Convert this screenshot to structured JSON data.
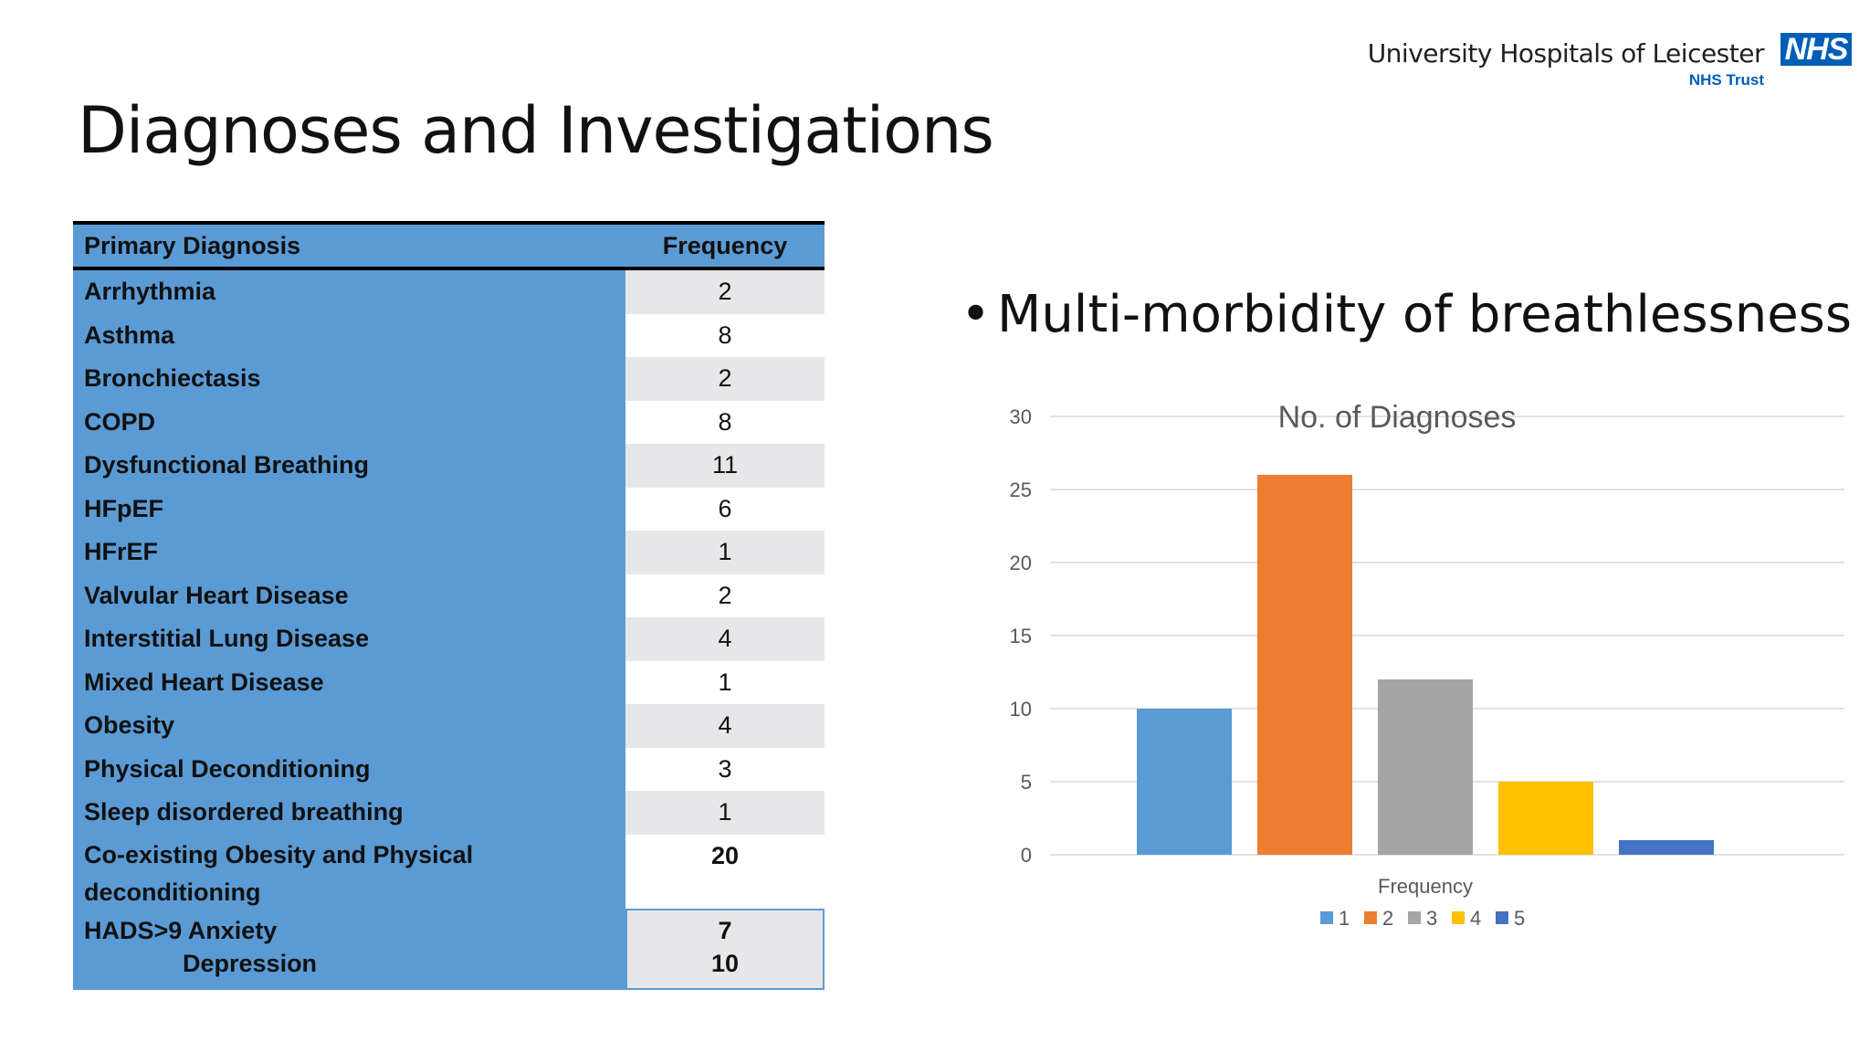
{
  "slide": {
    "title": "Diagnoses and Investigations",
    "bullet": "Multi-morbidity of breathlessness"
  },
  "logo": {
    "name": "University Hospitals of Leicester",
    "trust": "NHS Trust",
    "mark": "NHS"
  },
  "table": {
    "headers": [
      "Primary Diagnosis",
      "Frequency"
    ],
    "rows": [
      {
        "label": "Arrhythmia",
        "value": "2"
      },
      {
        "label": "Asthma",
        "value": "8"
      },
      {
        "label": "Bronchiectasis",
        "value": "2"
      },
      {
        "label": "COPD",
        "value": "8"
      },
      {
        "label": "Dysfunctional Breathing",
        "value": "11"
      },
      {
        "label": "HFpEF",
        "value": "6"
      },
      {
        "label": "HFrEF",
        "value": "1"
      },
      {
        "label": "Valvular Heart Disease",
        "value": "2"
      },
      {
        "label": "Interstitial Lung Disease",
        "value": "4"
      },
      {
        "label": "Mixed Heart Disease",
        "value": "1"
      },
      {
        "label": "Obesity",
        "value": "4"
      },
      {
        "label": "Physical Deconditioning",
        "value": "3"
      },
      {
        "label": "Sleep disordered breathing",
        "value": "1"
      }
    ],
    "coexisting": {
      "label": "Co-existing Obesity and Physical deconditioning",
      "value": "20"
    },
    "hads": {
      "label": "HADS>9 Anxiety",
      "sublabel": "Depression",
      "value1": "7",
      "value2": "10"
    }
  },
  "chart_data": {
    "type": "bar",
    "title": "No. of Diagnoses",
    "xlabel": "Frequency",
    "ylabel": "",
    "categories": [
      "Frequency"
    ],
    "series": [
      {
        "name": "1",
        "values": [
          10
        ],
        "color": "#5b9bd5"
      },
      {
        "name": "2",
        "values": [
          26
        ],
        "color": "#ed7d31"
      },
      {
        "name": "3",
        "values": [
          12
        ],
        "color": "#a5a5a5"
      },
      {
        "name": "4",
        "values": [
          5
        ],
        "color": "#ffc000"
      },
      {
        "name": "5",
        "values": [
          1
        ],
        "color": "#4472c4"
      }
    ],
    "ylim": [
      0,
      30
    ],
    "yticks": [
      0,
      5,
      10,
      15,
      20,
      25,
      30
    ],
    "grid": true,
    "legend": "bottom"
  }
}
